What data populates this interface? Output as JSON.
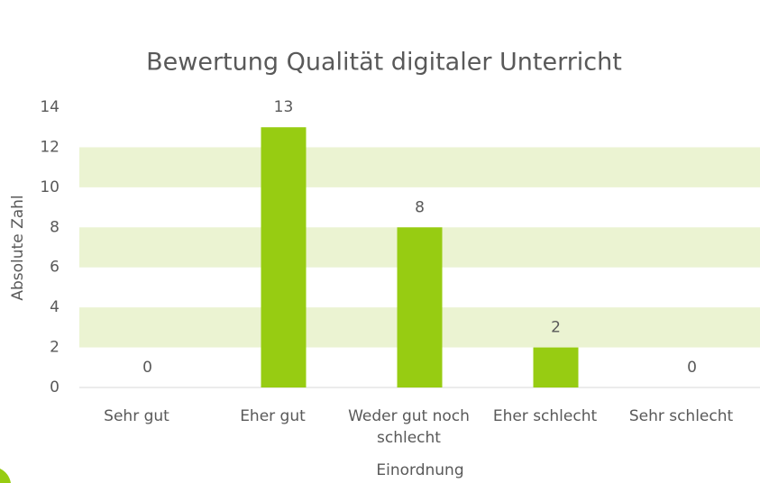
{
  "chart_data": {
    "type": "bar",
    "title": "Bewertung Qualität digitaler Unterricht",
    "x_label": "Einordnung",
    "y_label": "Absolute Zahl",
    "categories": [
      "Sehr gut",
      "Eher gut",
      "Weder gut noch schlecht",
      "Eher schlecht",
      "Sehr schlecht"
    ],
    "values": [
      0,
      13,
      8,
      2,
      0
    ],
    "color": "#97cc12",
    "ylim": [
      0,
      14
    ],
    "yticks": [
      0,
      2,
      4,
      6,
      8,
      10,
      12,
      14
    ],
    "grid": true,
    "grid_color": "#ebf3d2"
  }
}
